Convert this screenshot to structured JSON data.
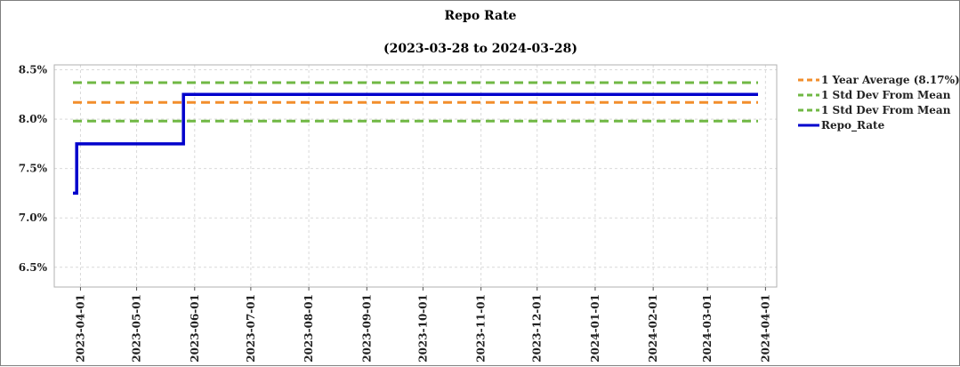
{
  "chart_data": {
    "type": "line",
    "title": "Repo Rate",
    "subtitle": "(2023-03-28 to 2024-03-28)",
    "xlabel": "",
    "ylabel": "",
    "ylim": [
      6.3,
      8.55
    ],
    "xlim": [
      "2023-03-18",
      "2024-04-07"
    ],
    "y_ticks": [
      "6.5%",
      "7.0%",
      "7.5%",
      "8.0%",
      "8.5%"
    ],
    "y_tick_values": [
      6.5,
      7.0,
      7.5,
      8.0,
      8.5
    ],
    "x_ticks": [
      "2023-04-01",
      "2023-05-01",
      "2023-06-01",
      "2023-07-01",
      "2023-08-01",
      "2023-09-01",
      "2023-10-01",
      "2023-11-01",
      "2023-12-01",
      "2024-01-01",
      "2024-02-01",
      "2024-03-01",
      "2024-04-01"
    ],
    "grid": true,
    "legend_position": "right",
    "series": [
      {
        "name": "1 Year Average (8.17%)",
        "style": "dashed",
        "color": "#f28e2b",
        "x": [
          "2023-03-28",
          "2024-03-28"
        ],
        "values": [
          8.17,
          8.17
        ]
      },
      {
        "name": "1 Std Dev From Mean",
        "style": "dashed",
        "color": "#70b844",
        "x": [
          "2023-03-28",
          "2024-03-28"
        ],
        "values": [
          8.37,
          8.37
        ]
      },
      {
        "name": "1 Std Dev From Mean",
        "style": "dashed",
        "color": "#70b844",
        "x": [
          "2023-03-28",
          "2024-03-28"
        ],
        "values": [
          7.98,
          7.98
        ]
      },
      {
        "name": "Repo_Rate",
        "style": "solid",
        "color": "#0000cc",
        "step": true,
        "x": [
          "2023-03-28",
          "2023-03-30",
          "2023-05-26",
          "2024-03-28"
        ],
        "values": [
          7.25,
          7.75,
          8.25,
          8.25
        ]
      }
    ]
  }
}
